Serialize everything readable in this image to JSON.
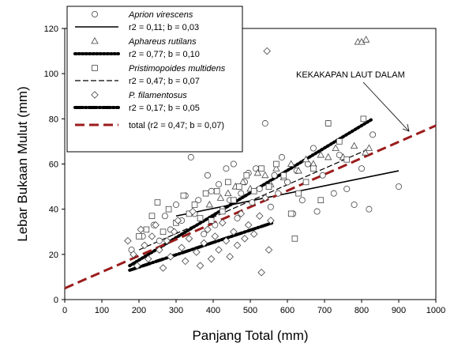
{
  "chart_data": {
    "type": "scatter",
    "xlabel": "Panjang Total (mm)",
    "ylabel": "Lebar Bukaan Mulut (mm)",
    "xlim": [
      0,
      1000
    ],
    "ylim": [
      0,
      120
    ],
    "xticks": [
      "0",
      "100",
      "200",
      "300",
      "400",
      "500",
      "600",
      "700",
      "800",
      "900",
      "1000"
    ],
    "yticks": [
      "0",
      "20",
      "40",
      "60",
      "80",
      "100",
      "120"
    ],
    "grid": false,
    "legend_position": "top-left",
    "annotation": "KEKAKAPAN LAUT DALAM",
    "series": [
      {
        "name": "Aprion virescens",
        "marker": "circle",
        "stats": "r2 = 0,11; b = 0,03",
        "fit": {
          "x": [
            300,
            900
          ],
          "y": [
            37,
            57
          ],
          "style": "solid",
          "color": "#000000"
        },
        "points": [
          [
            180,
            22
          ],
          [
            210,
            28
          ],
          [
            240,
            33
          ],
          [
            255,
            26
          ],
          [
            270,
            37
          ],
          [
            285,
            31
          ],
          [
            300,
            42
          ],
          [
            315,
            35
          ],
          [
            325,
            46
          ],
          [
            340,
            63
          ],
          [
            350,
            38
          ],
          [
            360,
            44
          ],
          [
            375,
            29
          ],
          [
            385,
            55
          ],
          [
            395,
            48
          ],
          [
            405,
            33
          ],
          [
            415,
            51
          ],
          [
            425,
            40
          ],
          [
            435,
            58
          ],
          [
            445,
            44
          ],
          [
            455,
            60
          ],
          [
            465,
            36
          ],
          [
            475,
            47
          ],
          [
            485,
            52
          ],
          [
            495,
            56
          ],
          [
            505,
            43
          ],
          [
            515,
            58
          ],
          [
            525,
            49
          ],
          [
            540,
            78
          ],
          [
            555,
            41
          ],
          [
            565,
            55
          ],
          [
            575,
            47
          ],
          [
            585,
            63
          ],
          [
            600,
            52
          ],
          [
            615,
            38
          ],
          [
            625,
            57
          ],
          [
            640,
            44
          ],
          [
            655,
            60
          ],
          [
            670,
            67
          ],
          [
            680,
            39
          ],
          [
            695,
            55
          ],
          [
            710,
            78
          ],
          [
            725,
            47
          ],
          [
            740,
            64
          ],
          [
            760,
            49
          ],
          [
            780,
            42
          ],
          [
            800,
            58
          ],
          [
            820,
            40
          ],
          [
            830,
            73
          ],
          [
            900,
            50
          ]
        ]
      },
      {
        "name": "Aphareus rutilans",
        "marker": "triangle",
        "stats": "r2 = 0,77; b = 0,10",
        "fit": {
          "x": [
            175,
            830
          ],
          "y": [
            15,
            80
          ],
          "style": "dotted",
          "color": "#000000"
        },
        "points": [
          [
            390,
            42
          ],
          [
            420,
            45
          ],
          [
            440,
            47
          ],
          [
            460,
            50
          ],
          [
            480,
            52
          ],
          [
            500,
            49
          ],
          [
            520,
            56
          ],
          [
            540,
            55
          ],
          [
            555,
            51
          ],
          [
            570,
            58
          ],
          [
            590,
            54
          ],
          [
            610,
            60
          ],
          [
            630,
            57
          ],
          [
            650,
            62
          ],
          [
            670,
            60
          ],
          [
            690,
            64
          ],
          [
            710,
            63
          ],
          [
            730,
            67
          ],
          [
            750,
            63
          ],
          [
            780,
            68
          ],
          [
            810,
            65
          ],
          [
            820,
            67
          ],
          [
            790,
            114
          ],
          [
            800,
            114
          ],
          [
            812,
            115
          ]
        ]
      },
      {
        "name": "Pristimopoides multidens",
        "marker": "square",
        "stats": "r2 = 0,47; b = 0,07",
        "fit": {
          "x": [
            200,
            810
          ],
          "y": [
            22,
            66
          ],
          "style": "dashed",
          "color": "#000000"
        },
        "points": [
          [
            200,
            28
          ],
          [
            220,
            31
          ],
          [
            235,
            37
          ],
          [
            250,
            43
          ],
          [
            265,
            30
          ],
          [
            280,
            40
          ],
          [
            300,
            34
          ],
          [
            320,
            46
          ],
          [
            335,
            38
          ],
          [
            350,
            42
          ],
          [
            365,
            36
          ],
          [
            380,
            47
          ],
          [
            395,
            35
          ],
          [
            410,
            48
          ],
          [
            425,
            39
          ],
          [
            440,
            52
          ],
          [
            455,
            44
          ],
          [
            470,
            50
          ],
          [
            490,
            55
          ],
          [
            510,
            48
          ],
          [
            530,
            58
          ],
          [
            550,
            50
          ],
          [
            570,
            60
          ],
          [
            590,
            55
          ],
          [
            610,
            38
          ],
          [
            630,
            47
          ],
          [
            650,
            52
          ],
          [
            670,
            58
          ],
          [
            690,
            44
          ],
          [
            710,
            78
          ],
          [
            740,
            70
          ],
          [
            760,
            62
          ],
          [
            805,
            80
          ],
          [
            620,
            27
          ]
        ]
      },
      {
        "name": "P. filamentosus",
        "marker": "diamond",
        "stats": "r2 = 0,17; b = 0,05",
        "fit": {
          "x": [
            175,
            560
          ],
          "y": [
            13,
            34
          ],
          "style": "dash-dot",
          "color": "#000000"
        },
        "points": [
          [
            170,
            26
          ],
          [
            185,
            20
          ],
          [
            195,
            15
          ],
          [
            205,
            31
          ],
          [
            215,
            24
          ],
          [
            225,
            18
          ],
          [
            235,
            28
          ],
          [
            245,
            33
          ],
          [
            255,
            22
          ],
          [
            265,
            14
          ],
          [
            275,
            26
          ],
          [
            285,
            19
          ],
          [
            295,
            30
          ],
          [
            305,
            35
          ],
          [
            315,
            23
          ],
          [
            325,
            17
          ],
          [
            335,
            27
          ],
          [
            345,
            39
          ],
          [
            355,
            21
          ],
          [
            365,
            15
          ],
          [
            375,
            25
          ],
          [
            385,
            31
          ],
          [
            395,
            18
          ],
          [
            405,
            28
          ],
          [
            415,
            22
          ],
          [
            425,
            34
          ],
          [
            435,
            26
          ],
          [
            445,
            19
          ],
          [
            455,
            30
          ],
          [
            465,
            24
          ],
          [
            475,
            38
          ],
          [
            485,
            27
          ],
          [
            495,
            33
          ],
          [
            510,
            29
          ],
          [
            525,
            37
          ],
          [
            540,
            45
          ],
          [
            550,
            22
          ],
          [
            555,
            35
          ],
          [
            530,
            12
          ],
          [
            545,
            110
          ]
        ]
      },
      {
        "name": "total",
        "stats": "(r2 = 0,47; b = 0,07)",
        "fit": {
          "x": [
            0,
            1000
          ],
          "y": [
            5,
            77
          ],
          "style": "dashed-thick",
          "color": "#9b1c1c"
        }
      }
    ]
  }
}
